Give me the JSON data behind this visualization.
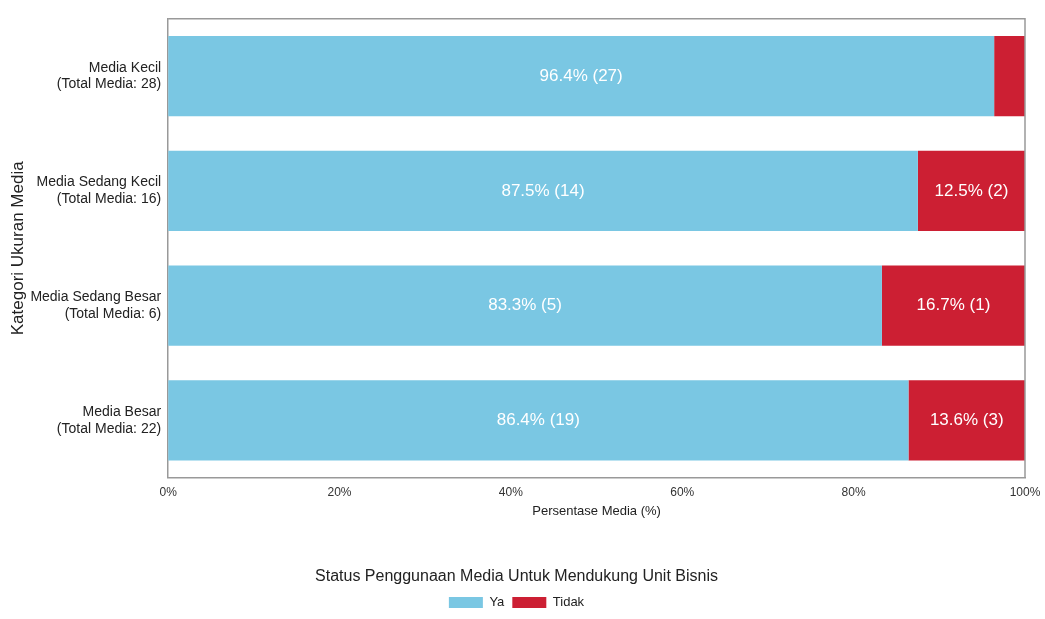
{
  "chart_data": {
    "type": "bar",
    "orientation": "horizontal",
    "stacked": true,
    "categories": [
      "Media Kecil\n(Total Media: 28)",
      "Media Sedang Kecil\n(Total Media: 16)",
      "Media Sedang Besar\n(Total Media: 6)",
      "Media Besar\n(Total Media: 22)"
    ],
    "series": [
      {
        "name": "Ya",
        "color": "#7ac7e3",
        "values": [
          96.4,
          87.5,
          83.3,
          86.4
        ],
        "value_labels": [
          "96.4% (27)",
          "87.5% (14)",
          "83.3% (5)",
          "86.4% (19)"
        ]
      },
      {
        "name": "Tidak",
        "color": "#cc1f33",
        "values": [
          3.6,
          12.5,
          16.7,
          13.6
        ],
        "value_labels": [
          null,
          "12.5% (2)",
          "16.7% (1)",
          "13.6% (3)"
        ]
      }
    ],
    "xlabel": "Persentase Media (%)",
    "ylabel": "Kategori Ukuran Media",
    "xlim": [
      0,
      100
    ],
    "xticks": [
      {
        "value": 0,
        "label": "0%"
      },
      {
        "value": 20,
        "label": "20%"
      },
      {
        "value": 40,
        "label": "40%"
      },
      {
        "value": 60,
        "label": "60%"
      },
      {
        "value": 80,
        "label": "80%"
      },
      {
        "value": 100,
        "label": "100%"
      }
    ],
    "legend": "bottom",
    "legend_title": "Status Penggunaan Media Untuk Mendukung Unit Bisnis",
    "grid": false
  }
}
